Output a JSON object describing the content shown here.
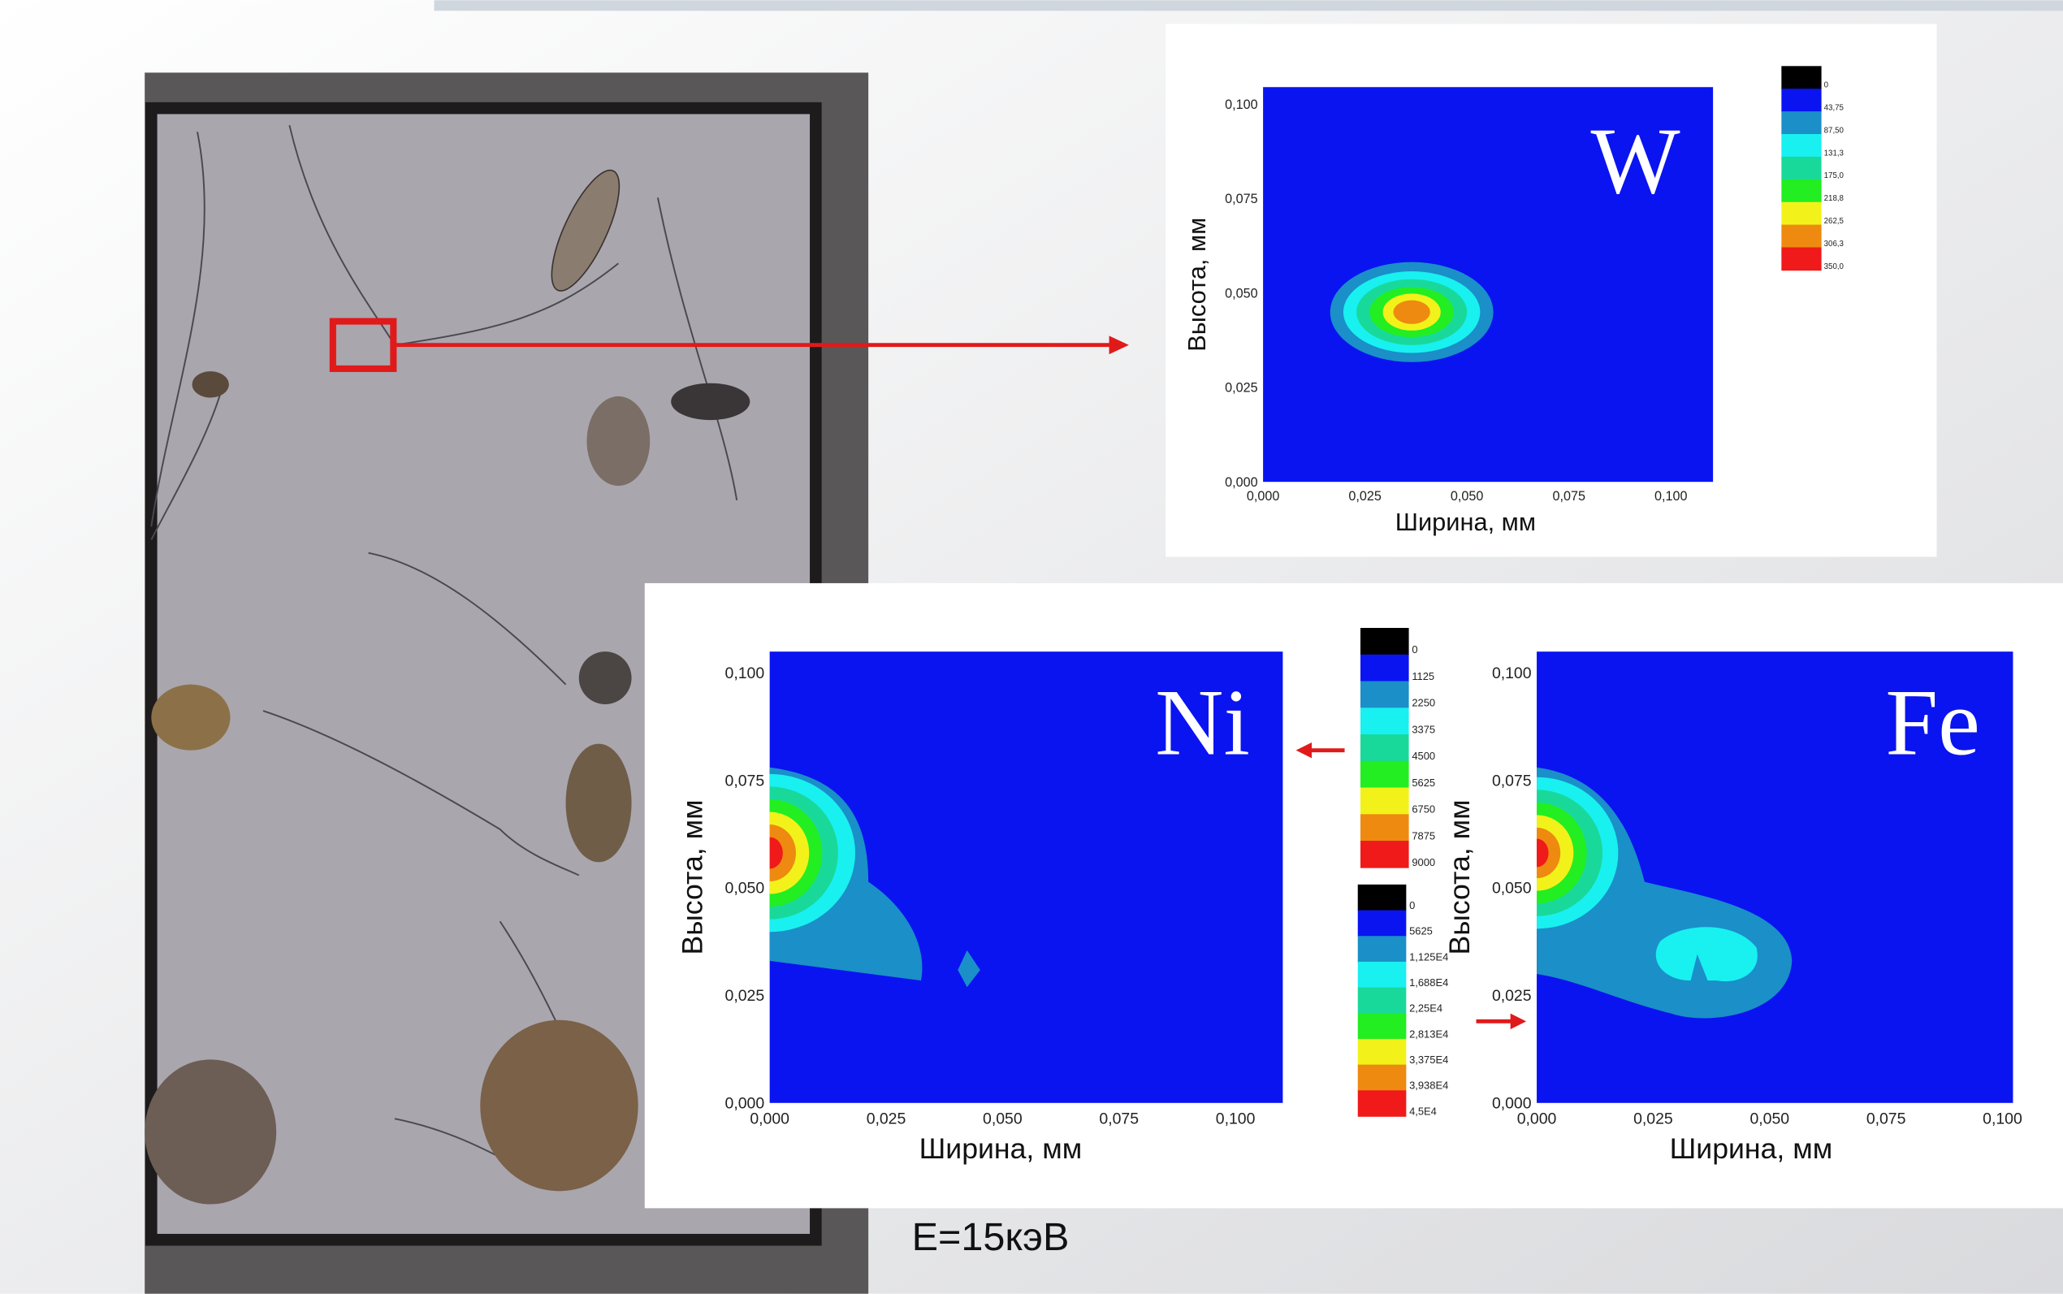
{
  "slide": {
    "energy": "E=15кэВ"
  },
  "maps": [
    {
      "element": "W",
      "x_label": "Ширина, мм",
      "y_label": "Высота, мм",
      "x_ticks": [
        "0,000",
        "0,025",
        "0,050",
        "0,075",
        "0,100"
      ],
      "y_ticks": [
        "0,000",
        "0,025",
        "0,050",
        "0,075",
        "0,100"
      ],
      "colorbar": [
        "0",
        "43,75",
        "87,50",
        "131,3",
        "175,0",
        "218,8",
        "262,5",
        "306,3",
        "350,0"
      ]
    },
    {
      "element": "Ni",
      "x_label": "Ширина, мм",
      "y_label": "Высота, мм",
      "x_ticks": [
        "0,000",
        "0,025",
        "0,050",
        "0,075",
        "0,100"
      ],
      "y_ticks": [
        "0,000",
        "0,025",
        "0,050",
        "0,075",
        "0,100"
      ],
      "colorbar": [
        "0",
        "1125",
        "2250",
        "3375",
        "4500",
        "5625",
        "6750",
        "7875",
        "9000"
      ]
    },
    {
      "element": "Fe",
      "x_label": "Ширина, мм",
      "y_label": "Высота, мм",
      "x_ticks": [
        "0,000",
        "0,025",
        "0,050",
        "0,075",
        "0,100"
      ],
      "y_ticks": [
        "0,000",
        "0,025",
        "0,050",
        "0,075",
        "0,100"
      ],
      "colorbar": [
        "0",
        "5625",
        "1,125E4",
        "1,688E4",
        "2,25E4",
        "2,813E4",
        "3,375E4",
        "3,938E4",
        "4,5E4"
      ]
    }
  ]
}
